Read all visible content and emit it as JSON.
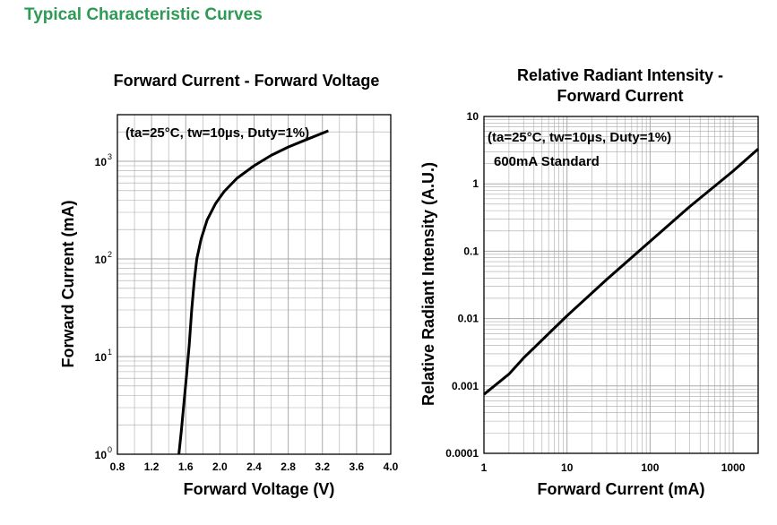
{
  "page": {
    "title": "Typical Characteristic Curves"
  },
  "colors": {
    "title": "#2e9a54",
    "axis": "#000000",
    "grid": "#a9a9a9",
    "curve": "#000000"
  },
  "chart_data": [
    {
      "type": "line",
      "title": "Forward Current - Forward Voltage",
      "xlabel": "Forward Voltage (V)",
      "ylabel": "Forward Current (mA)",
      "xscale": "linear",
      "yscale": "log",
      "xlim": [
        0.8,
        4.0
      ],
      "ylim": [
        1,
        3000
      ],
      "xticks": [
        "0.8",
        "1.2",
        "1.6",
        "2.0",
        "2.4",
        "2.8",
        "3.2",
        "3.6",
        "4.0"
      ],
      "yticks": [
        {
          "value": 1,
          "base": "10",
          "exp": "0"
        },
        {
          "value": 10,
          "base": "10",
          "exp": "1"
        },
        {
          "value": 100,
          "base": "10",
          "exp": "2"
        },
        {
          "value": 1000,
          "base": "10",
          "exp": "3"
        }
      ],
      "grid": true,
      "annotations": [
        "(ta=25°C, tw=10µs, Duty=1%)"
      ],
      "series": [
        {
          "x": [
            1.52,
            1.55,
            1.58,
            1.61,
            1.64,
            1.67,
            1.7,
            1.73,
            1.78,
            1.85,
            1.95,
            2.05,
            2.2,
            2.4,
            2.6,
            2.8,
            3.0,
            3.27
          ],
          "y": [
            1,
            1.8,
            3.4,
            6.5,
            13,
            30,
            60,
            100,
            160,
            250,
            370,
            490,
            670,
            900,
            1150,
            1400,
            1650,
            2050
          ]
        }
      ]
    },
    {
      "type": "line",
      "title": "Relative Radiant Intensity - Forward Current",
      "xlabel": "Forward Current (mA)",
      "ylabel": "Relative Radiant Intensity (A.U.)",
      "xscale": "log",
      "yscale": "log",
      "xlim": [
        1,
        2000
      ],
      "ylim": [
        0.0001,
        10
      ],
      "xticks": [
        "1",
        "10",
        "100",
        "1000"
      ],
      "yticks": [
        "0.0001",
        "0.001",
        "0.01",
        "0.1",
        "1",
        "10"
      ],
      "grid": true,
      "annotations": [
        "(ta=25°C, tw=10µs, Duty=1%)",
        "600mA Standard"
      ],
      "series": [
        {
          "x": [
            1,
            2,
            3,
            5,
            10,
            30,
            100,
            300,
            1000,
            2000
          ],
          "y": [
            0.00075,
            0.0015,
            0.0026,
            0.0048,
            0.011,
            0.038,
            0.14,
            0.46,
            1.55,
            3.3
          ]
        }
      ]
    }
  ]
}
